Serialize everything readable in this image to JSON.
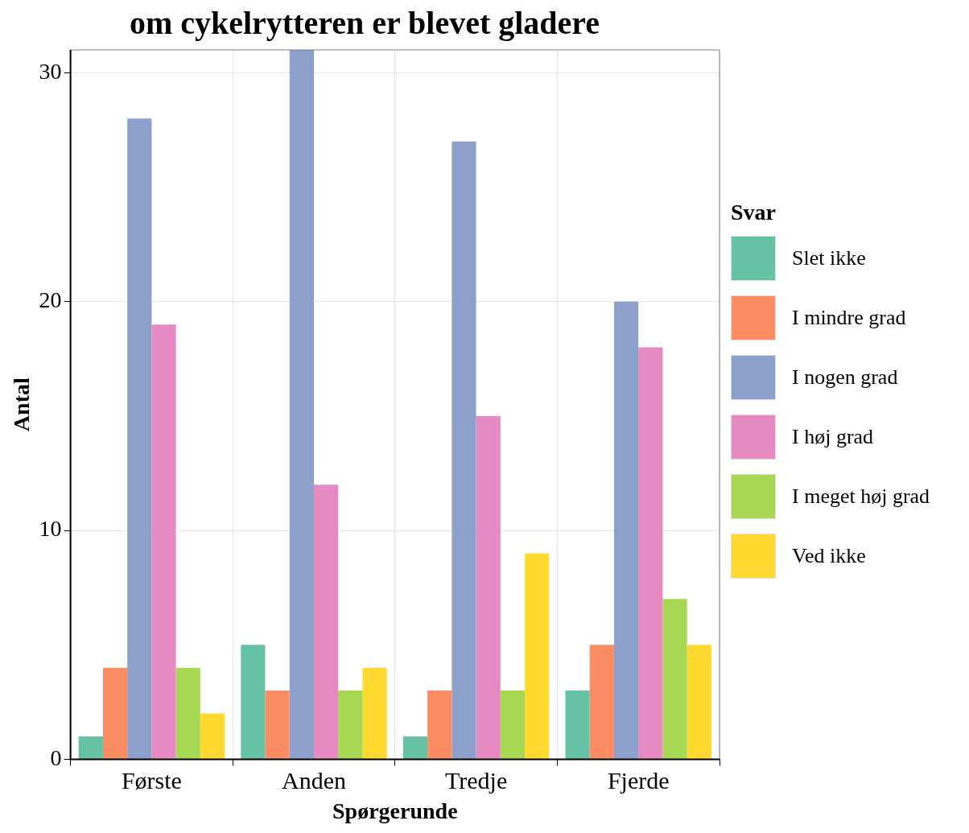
{
  "chart_data": {
    "type": "bar",
    "title": "om cykelrytteren er blevet gladere",
    "xlabel": "Spørgerunde",
    "ylabel": "Antal",
    "legend_title": "Svar",
    "categories": [
      "Første",
      "Anden",
      "Tredje",
      "Fjerde"
    ],
    "series": [
      {
        "name": "Slet ikke",
        "color": "#66c2a5",
        "values": [
          1,
          5,
          1,
          3
        ]
      },
      {
        "name": "I mindre grad",
        "color": "#fc8d62",
        "values": [
          4,
          3,
          3,
          5
        ]
      },
      {
        "name": "I nogen grad",
        "color": "#8da0cb",
        "values": [
          28,
          31,
          27,
          20
        ]
      },
      {
        "name": "I høj grad",
        "color": "#e78ac3",
        "values": [
          19,
          12,
          15,
          18
        ]
      },
      {
        "name": "I meget høj grad",
        "color": "#a6d854",
        "values": [
          4,
          3,
          3,
          7
        ]
      },
      {
        "name": "Ved ikke",
        "color": "#ffd92f",
        "values": [
          2,
          4,
          9,
          5
        ]
      }
    ],
    "ylim": [
      0,
      31
    ],
    "yticks": [
      0,
      10,
      20,
      30
    ],
    "grid": true,
    "legend": "right"
  }
}
